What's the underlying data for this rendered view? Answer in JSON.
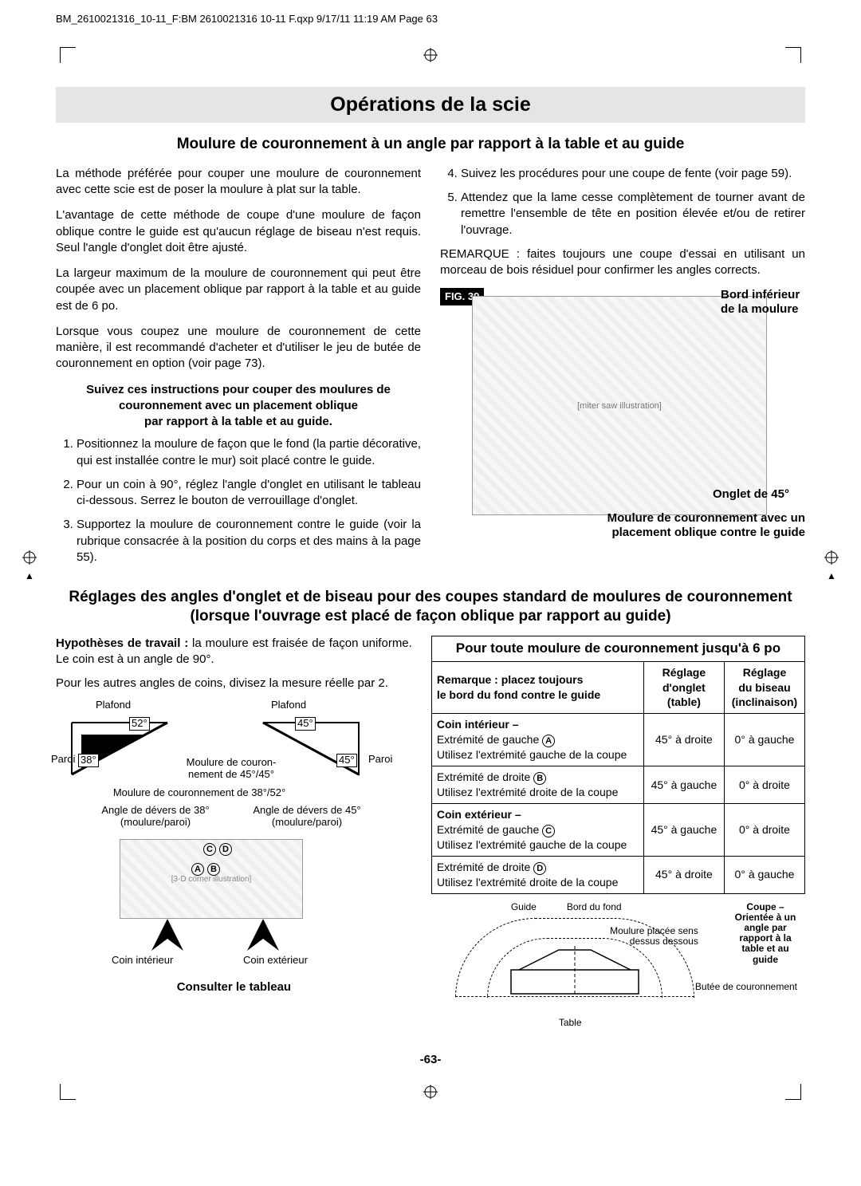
{
  "header": {
    "slug": "BM_2610021316_10-11_F:BM 2610021316 10-11 F.qxp  9/17/11  11:19 AM  Page 63"
  },
  "title": "Opérations de la scie",
  "subhead": "Moulure de couronnement à un angle par rapport à la table et au guide",
  "left_paras": [
    "La méthode préférée pour couper une moulure de couronnement avec cette scie est de poser la moulure à plat sur la table.",
    "L'avantage de cette méthode de coupe d'une moulure de façon oblique contre le guide est qu'aucun réglage de biseau n'est requis. Seul l'angle d'onglet doit être ajusté.",
    "La largeur maximum de la moulure de couronnement qui peut être coupée avec un placement oblique par rapport à la table et au guide est de 6 po.",
    "Lorsque vous coupez une moulure de couronnement de cette manière, il est recommandé d'acheter et d'utiliser le jeu de butée de couronnement en option (voir page 73)."
  ],
  "instr_head_lines": [
    "Suivez ces instructions pour couper des moulures de",
    "couronnement avec un placement oblique",
    "par rapport à la table et au guide."
  ],
  "steps_left": [
    "Positionnez la moulure de façon que le fond (la partie décorative, qui est installée contre le mur) soit placé contre le guide.",
    "Pour un coin à 90°, réglez l'angle d'onglet en utilisant le tableau ci-dessous. Serrez le bouton de verrouillage d'onglet.",
    "Supportez la moulure de couronnement contre le guide (voir la rubrique consacrée à la position du corps et des mains à la page 55)."
  ],
  "steps_right": [
    "Suivez les procédures pour une coupe de fente (voir page 59).",
    "Attendez que la lame cesse complètement de tourner avant de remettre l'ensemble de tête en position élevée et/ou de retirer l'ouvrage."
  ],
  "remark": "REMARQUE : faites toujours une coupe d'essai en utilisant un morceau de bois résiduel pour confirmer les angles corrects.",
  "fig": {
    "label": "FIG. 39",
    "annot_top": "Bord inférieur de la moulure",
    "annot_mid": "Onglet de 45°",
    "annot_bottom1": "Moulure de couronnement avec un",
    "annot_bottom2": "placement oblique contre le guide"
  },
  "section2_head": "Réglages des angles d'onglet et de biseau pour des coupes standard de moulures de couronne­ment (lorsque l'ouvrage est placé de façon oblique par rapport au guide)",
  "hypoth_label": "Hypothèses de travail :",
  "hypoth_text": " la moulure est fraisée de façon uniforme. Le coin est à un angle de 90°.",
  "other_angles": "Pour les autres angles de coins, divisez la mesure réelle par 2.",
  "diagram": {
    "plafond": "Plafond",
    "paroi": "Paroi",
    "a52": "52°",
    "a38": "38°",
    "a45": "45°",
    "mc4545": "Moulure de couron­nement de 45°/45°",
    "mc3852": "Moulure de couronnement de 38°/52°",
    "devers38_l1": "Angle de dévers de 38°",
    "devers38_l2": "(moulure/paroi)",
    "devers45_l1": "Angle de dévers de 45°",
    "devers45_l2": "(moulure/paroi)",
    "coin_int": "Coin intérieur",
    "coin_ext": "Coin extérieur",
    "consult": "Consulter le tableau",
    "A": "A",
    "B": "B",
    "C": "C",
    "D": "D"
  },
  "table": {
    "caption": "Pour toute moulure de couronnement jusqu'à 6 po",
    "head_note_l1": "Remarque : placez toujours",
    "head_note_l2": "le bord du fond contre le guide",
    "head_miter_l1": "Réglage",
    "head_miter_l2": "d'onglet",
    "head_miter_l3": "(table)",
    "head_bevel_l1": "Réglage",
    "head_bevel_l2": "du biseau",
    "head_bevel_l3": "(inclinaison)",
    "rows": [
      {
        "title": "Coin intérieur –",
        "line1a": "Extrémité de gauche ",
        "badge": "A",
        "line2": "Utilisez l'extrémité gauche de la coupe",
        "miter": "45° à droite",
        "bevel": "0° à gauche"
      },
      {
        "title": "",
        "line1a": "Extrémité de droite ",
        "badge": "B",
        "line2": "Utilisez l'extrémité droite de la coupe",
        "miter": "45° à gauche",
        "bevel": "0° à droite"
      },
      {
        "title": "Coin extérieur –",
        "line1a": "Extrémité de gauche ",
        "badge": "C",
        "line2": "Utilisez l'extrémité gauche de la coupe",
        "miter": "45° à gauche",
        "bevel": "0° à droite"
      },
      {
        "title": "",
        "line1a": "Extrémité de droite ",
        "badge": "D",
        "line2": "Utilisez l'extrémité droite de la coupe",
        "miter": "45° à droite",
        "bevel": "0° à gauche"
      }
    ]
  },
  "guide_diagram": {
    "guide": "Guide",
    "bord": "Bord du fond",
    "moulure_l1": "Moulure placée sens",
    "moulure_l2": "dessus dessous",
    "coupe_l1": "Coupe –",
    "coupe_l2": "Orientée à un",
    "coupe_l3": "angle par",
    "coupe_l4": "rapport à la",
    "coupe_l5": "table et au",
    "coupe_l6": "guide",
    "butee": "Butée de couronnement",
    "table": "Table"
  },
  "pagenum": "-63-"
}
